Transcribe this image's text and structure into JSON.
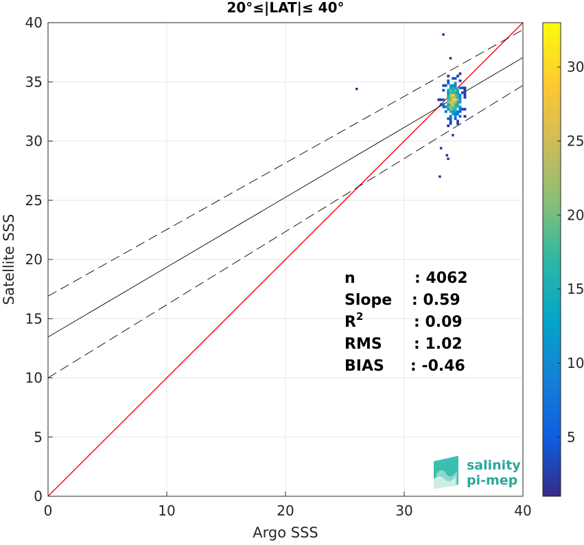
{
  "chart_data": {
    "type": "scatter",
    "subtype": "density-histogram",
    "title": "20°≤|LAT|≤ 40°",
    "xlabel": "Argo SSS",
    "ylabel": "Satellite SSS",
    "xlim": [
      0,
      40
    ],
    "ylim": [
      0,
      40
    ],
    "xticks": [
      0,
      10,
      20,
      30,
      40
    ],
    "yticks": [
      0,
      5,
      10,
      15,
      20,
      25,
      30,
      35,
      40
    ],
    "grid": true,
    "colorbar": {
      "range": [
        1,
        33
      ],
      "ticks": [
        5,
        10,
        15,
        20,
        25,
        30
      ],
      "colormap": "parula"
    },
    "lines": [
      {
        "name": "1:1",
        "color": "#ff0000",
        "style": "solid",
        "points": [
          [
            0,
            0
          ],
          [
            40,
            40
          ]
        ]
      },
      {
        "name": "fit",
        "color": "#000000",
        "style": "solid",
        "points": [
          [
            0,
            13.45
          ],
          [
            40,
            37.05
          ]
        ]
      },
      {
        "name": "fit+",
        "color": "#000000",
        "style": "dashed",
        "points": [
          [
            0,
            16.9
          ],
          [
            40,
            39.4
          ]
        ]
      },
      {
        "name": "fit-",
        "color": "#000000",
        "style": "dashed",
        "points": [
          [
            0,
            10.0
          ],
          [
            40,
            34.7
          ]
        ]
      }
    ],
    "density": {
      "center": [
        34.0,
        33.4
      ],
      "spread": [
        0.45,
        0.9
      ],
      "peak": 33,
      "outliers": [
        [
          25.9,
          34.3
        ],
        [
          33.2,
          38.9
        ],
        [
          33.8,
          36.9
        ],
        [
          33.0,
          29.3
        ],
        [
          33.5,
          28.7
        ],
        [
          33.6,
          28.4
        ],
        [
          32.9,
          26.9
        ],
        [
          34.0,
          30.4
        ]
      ]
    }
  },
  "stats": {
    "rows": [
      {
        "label": "n",
        "value": ": 4062"
      },
      {
        "label": "Slope",
        "value": ": 0.59"
      },
      {
        "label": "R",
        "sup": "2",
        "value": ": 0.09"
      },
      {
        "label": "RMS",
        "value": ": 1.02"
      },
      {
        "label": "BIAS",
        "value": ": -0.46"
      }
    ]
  },
  "logo": {
    "line1": "salinity",
    "line2": "pi-mep"
  }
}
